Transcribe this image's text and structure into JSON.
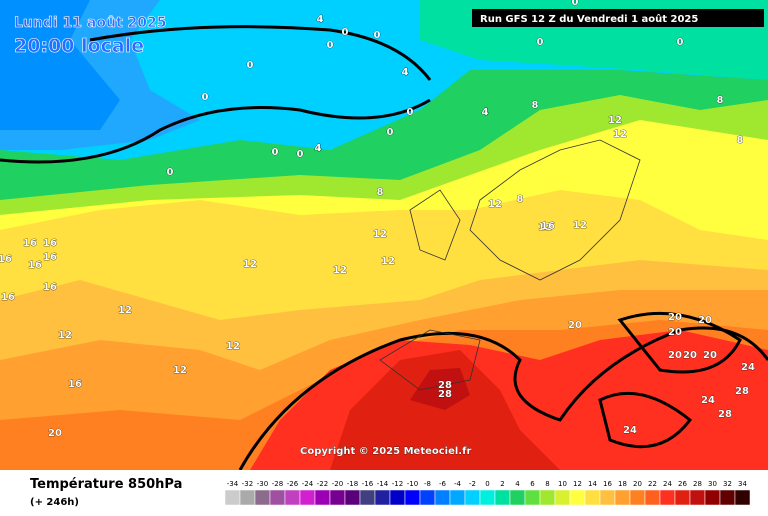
{
  "header": {
    "date": "Lundi 11 août 2025",
    "time": "20:00 locale",
    "run": "Run GFS 12 Z du Vendredi 1 août 2025",
    "copyright": "Copyright © 2025 Meteociel.fr"
  },
  "footer": {
    "title": "Température 850hPa",
    "lead": "(+ 246h)"
  },
  "scale": {
    "values": [
      -34,
      -32,
      -30,
      -28,
      -26,
      -24,
      -22,
      -20,
      -18,
      -16,
      -14,
      -12,
      -10,
      -8,
      -6,
      -4,
      -2,
      0,
      2,
      4,
      6,
      8,
      10,
      12,
      14,
      16,
      18,
      20,
      22,
      24,
      26,
      28,
      30,
      32,
      34
    ],
    "colors": [
      "#cccccc",
      "#aaaaaa",
      "#8c6c8c",
      "#a050a0",
      "#c040c0",
      "#d020d0",
      "#9c00b4",
      "#780090",
      "#5a007a",
      "#404080",
      "#2020a0",
      "#0000c8",
      "#0000ff",
      "#0040ff",
      "#0080ff",
      "#00a8ff",
      "#00d0ff",
      "#00f0e0",
      "#00e0a0",
      "#20d060",
      "#60e040",
      "#a0e830",
      "#d8f030",
      "#ffff40",
      "#ffe040",
      "#ffc040",
      "#ffa030",
      "#ff8020",
      "#ff6020",
      "#ff3020",
      "#e02010",
      "#c01010",
      "#900000",
      "#600000",
      "#300000"
    ]
  },
  "contour_labels": [
    0,
    0,
    0,
    0,
    0,
    0,
    4,
    4,
    4,
    0,
    0,
    0,
    0,
    0,
    4,
    0,
    0,
    8,
    8,
    8,
    8,
    8,
    12,
    12,
    12,
    12,
    12,
    12,
    12,
    12,
    12,
    12,
    12,
    12,
    12,
    16,
    16,
    16,
    16,
    16,
    16,
    16,
    16,
    16,
    20,
    20,
    20,
    20,
    20,
    20,
    20,
    20,
    24,
    24,
    24,
    28,
    28,
    28,
    28
  ]
}
